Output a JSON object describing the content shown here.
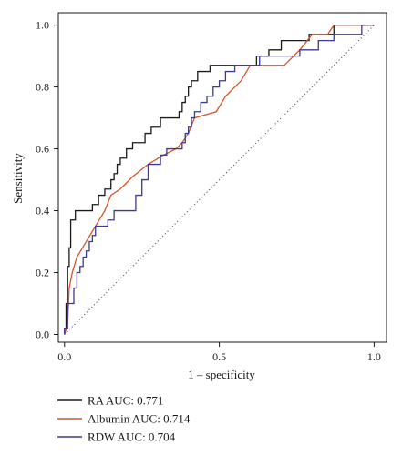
{
  "chart_data": {
    "type": "line",
    "title": "",
    "xlabel": "1 – specificity",
    "ylabel": "Sensitivity",
    "xlim": [
      -0.02,
      1.04
    ],
    "ylim": [
      -0.025,
      1.04
    ],
    "x_ticks": [
      0.0,
      0.5,
      1.0
    ],
    "x_tick_labels": [
      "0.0",
      "0.5",
      "1.0"
    ],
    "y_ticks": [
      0.0,
      0.2,
      0.4,
      0.6,
      0.8,
      1.0
    ],
    "y_tick_labels": [
      "0.0",
      "0.2",
      "0.4",
      "0.6",
      "0.8",
      "1.0"
    ],
    "grid": false,
    "legend_position": "bottom-left",
    "reference_line": {
      "style": "dotted",
      "from": [
        0,
        0
      ],
      "to": [
        1,
        1
      ],
      "color": "#555555"
    },
    "series": [
      {
        "name": "RA AUC: 0.771",
        "color": "#1a1a1a",
        "step": true,
        "points": [
          [
            0,
            0
          ],
          [
            0,
            0.02
          ],
          [
            0.005,
            0.02
          ],
          [
            0.005,
            0.1
          ],
          [
            0.01,
            0.1
          ],
          [
            0.01,
            0.22
          ],
          [
            0.015,
            0.22
          ],
          [
            0.015,
            0.28
          ],
          [
            0.02,
            0.28
          ],
          [
            0.02,
            0.37
          ],
          [
            0.035,
            0.37
          ],
          [
            0.035,
            0.4
          ],
          [
            0.09,
            0.4
          ],
          [
            0.09,
            0.42
          ],
          [
            0.11,
            0.42
          ],
          [
            0.11,
            0.45
          ],
          [
            0.13,
            0.45
          ],
          [
            0.13,
            0.47
          ],
          [
            0.15,
            0.47
          ],
          [
            0.15,
            0.5
          ],
          [
            0.16,
            0.5
          ],
          [
            0.16,
            0.52
          ],
          [
            0.17,
            0.52
          ],
          [
            0.17,
            0.55
          ],
          [
            0.18,
            0.55
          ],
          [
            0.18,
            0.57
          ],
          [
            0.2,
            0.57
          ],
          [
            0.2,
            0.6
          ],
          [
            0.22,
            0.6
          ],
          [
            0.22,
            0.62
          ],
          [
            0.26,
            0.62
          ],
          [
            0.26,
            0.65
          ],
          [
            0.28,
            0.65
          ],
          [
            0.28,
            0.67
          ],
          [
            0.31,
            0.67
          ],
          [
            0.31,
            0.7
          ],
          [
            0.37,
            0.7
          ],
          [
            0.37,
            0.72
          ],
          [
            0.38,
            0.72
          ],
          [
            0.38,
            0.75
          ],
          [
            0.39,
            0.75
          ],
          [
            0.39,
            0.77
          ],
          [
            0.4,
            0.77
          ],
          [
            0.4,
            0.8
          ],
          [
            0.41,
            0.8
          ],
          [
            0.41,
            0.82
          ],
          [
            0.43,
            0.82
          ],
          [
            0.43,
            0.85
          ],
          [
            0.47,
            0.85
          ],
          [
            0.47,
            0.87
          ],
          [
            0.62,
            0.87
          ],
          [
            0.62,
            0.9
          ],
          [
            0.66,
            0.9
          ],
          [
            0.66,
            0.92
          ],
          [
            0.7,
            0.92
          ],
          [
            0.7,
            0.95
          ],
          [
            0.79,
            0.95
          ],
          [
            0.79,
            0.97
          ],
          [
            0.87,
            0.97
          ],
          [
            0.87,
            1.0
          ],
          [
            1.0,
            1.0
          ]
        ]
      },
      {
        "name": "Albumin AUC: 0.714",
        "color": "#d9532b",
        "step": false,
        "points": [
          [
            0,
            0
          ],
          [
            0.01,
            0.03
          ],
          [
            0.015,
            0.15
          ],
          [
            0.025,
            0.2
          ],
          [
            0.04,
            0.25
          ],
          [
            0.07,
            0.3
          ],
          [
            0.13,
            0.4
          ],
          [
            0.15,
            0.45
          ],
          [
            0.18,
            0.47
          ],
          [
            0.22,
            0.51
          ],
          [
            0.27,
            0.55
          ],
          [
            0.32,
            0.58
          ],
          [
            0.36,
            0.6
          ],
          [
            0.38,
            0.62
          ],
          [
            0.4,
            0.65
          ],
          [
            0.42,
            0.7
          ],
          [
            0.49,
            0.72
          ],
          [
            0.52,
            0.77
          ],
          [
            0.57,
            0.82
          ],
          [
            0.6,
            0.87
          ],
          [
            0.71,
            0.87
          ],
          [
            0.74,
            0.9
          ],
          [
            0.76,
            0.92
          ],
          [
            0.8,
            0.97
          ],
          [
            0.85,
            0.97
          ],
          [
            0.87,
            1.0
          ],
          [
            1.0,
            1.0
          ]
        ]
      },
      {
        "name": "RDW AUC: 0.704",
        "color": "#3b3a8c",
        "step": true,
        "points": [
          [
            0,
            0
          ],
          [
            0,
            0.02
          ],
          [
            0.01,
            0.02
          ],
          [
            0.01,
            0.1
          ],
          [
            0.03,
            0.1
          ],
          [
            0.03,
            0.15
          ],
          [
            0.04,
            0.15
          ],
          [
            0.04,
            0.2
          ],
          [
            0.05,
            0.2
          ],
          [
            0.05,
            0.22
          ],
          [
            0.06,
            0.22
          ],
          [
            0.06,
            0.25
          ],
          [
            0.07,
            0.25
          ],
          [
            0.07,
            0.27
          ],
          [
            0.08,
            0.27
          ],
          [
            0.08,
            0.3
          ],
          [
            0.09,
            0.3
          ],
          [
            0.09,
            0.32
          ],
          [
            0.1,
            0.32
          ],
          [
            0.1,
            0.35
          ],
          [
            0.14,
            0.35
          ],
          [
            0.14,
            0.37
          ],
          [
            0.16,
            0.37
          ],
          [
            0.16,
            0.4
          ],
          [
            0.23,
            0.4
          ],
          [
            0.23,
            0.45
          ],
          [
            0.25,
            0.45
          ],
          [
            0.25,
            0.5
          ],
          [
            0.27,
            0.5
          ],
          [
            0.27,
            0.55
          ],
          [
            0.31,
            0.55
          ],
          [
            0.31,
            0.58
          ],
          [
            0.33,
            0.58
          ],
          [
            0.33,
            0.6
          ],
          [
            0.38,
            0.6
          ],
          [
            0.38,
            0.62
          ],
          [
            0.39,
            0.62
          ],
          [
            0.39,
            0.65
          ],
          [
            0.4,
            0.65
          ],
          [
            0.4,
            0.67
          ],
          [
            0.41,
            0.67
          ],
          [
            0.41,
            0.7
          ],
          [
            0.42,
            0.7
          ],
          [
            0.42,
            0.72
          ],
          [
            0.44,
            0.72
          ],
          [
            0.44,
            0.75
          ],
          [
            0.46,
            0.75
          ],
          [
            0.46,
            0.77
          ],
          [
            0.48,
            0.77
          ],
          [
            0.48,
            0.8
          ],
          [
            0.5,
            0.8
          ],
          [
            0.5,
            0.82
          ],
          [
            0.52,
            0.82
          ],
          [
            0.52,
            0.85
          ],
          [
            0.55,
            0.85
          ],
          [
            0.55,
            0.87
          ],
          [
            0.63,
            0.87
          ],
          [
            0.63,
            0.9
          ],
          [
            0.76,
            0.9
          ],
          [
            0.76,
            0.92
          ],
          [
            0.82,
            0.92
          ],
          [
            0.82,
            0.95
          ],
          [
            0.87,
            0.95
          ],
          [
            0.87,
            0.97
          ],
          [
            0.96,
            0.97
          ],
          [
            0.96,
            1.0
          ],
          [
            1.0,
            1.0
          ]
        ]
      }
    ]
  }
}
